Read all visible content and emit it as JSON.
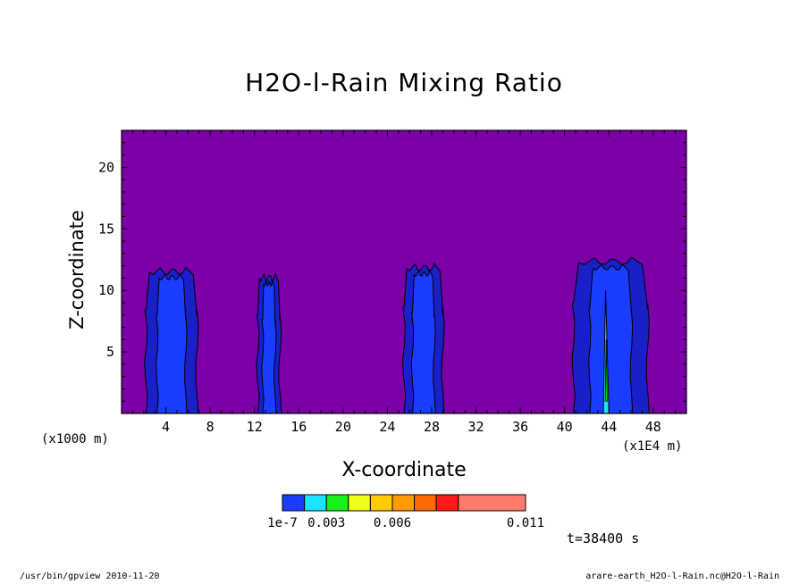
{
  "chart_data": {
    "type": "heatmap",
    "title": "H2O-l-Rain Mixing Ratio",
    "xlabel": "X-coordinate",
    "ylabel": "Z-coordinate",
    "x_scale_left": "(x1000 m)",
    "x_scale_right": "(x1E4 m)",
    "xlim": [
      0,
      51
    ],
    "ylim": [
      0,
      23
    ],
    "xticks": [
      4,
      8,
      12,
      16,
      20,
      24,
      28,
      32,
      36,
      40,
      44,
      48
    ],
    "yticks": [
      5,
      10,
      15,
      20
    ],
    "background_color": "#7b00a8",
    "contour_levels": [
      "1e-7",
      "0.003",
      "0.006",
      "0.011"
    ],
    "colorbar": {
      "colors": [
        "#1a3cff",
        "#18e6ff",
        "#18f018",
        "#f0ff18",
        "#ffcc00",
        "#ff9a00",
        "#ff6a00",
        "#ff1a1a",
        "#ff7a6a"
      ],
      "labels": [
        "1e-7",
        "0.003",
        "0.006",
        "0.011"
      ],
      "label_positions": [
        0,
        2,
        5,
        9
      ]
    },
    "features": [
      {
        "name": "rain column 1",
        "x_range": [
          2.2,
          6.8
        ],
        "top": 12.0,
        "peak": "1e-7 to 0.0015"
      },
      {
        "name": "rain column 2",
        "x_range": [
          12.3,
          14.3
        ],
        "top": 11.5,
        "peak": "1e-7 to 0.0015"
      },
      {
        "name": "rain column 3",
        "x_range": [
          25.5,
          29.0
        ],
        "top": 12.3,
        "peak": "1e-7 to 0.0015"
      },
      {
        "name": "rain column 4",
        "x_range": [
          40.8,
          47.5
        ],
        "top": 12.8,
        "peak": "0.003 to 0.0045"
      }
    ],
    "time": "t=38400 s"
  },
  "footer": {
    "left": "/usr/bin/gpview  2010-11-20",
    "right": "arare-earth_H2O-l-Rain.nc@H2O-l-Rain"
  }
}
